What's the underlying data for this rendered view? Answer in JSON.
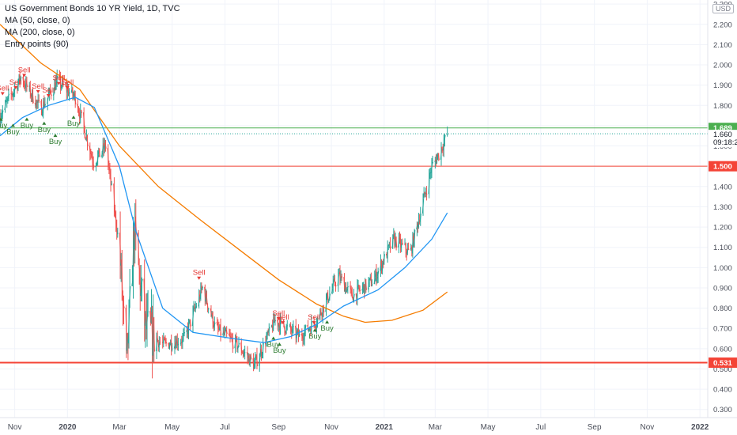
{
  "legend": {
    "title": "US Government Bonds 10 YR Yield, 1D, TVC",
    "ma50": "MA (50, close, 0)",
    "ma200": "MA (200, close, 0)",
    "entry": "Entry points (90)"
  },
  "currency_label": "USD",
  "colors": {
    "ma50": "#2196f3",
    "ma200": "#f57c00",
    "up": "#26a69a",
    "down": "#ef5350",
    "green_line": "#4caf50",
    "red_line": "#f44336",
    "buy": "#2e7d32",
    "sell": "#e53935"
  },
  "chart_data": {
    "type": "line",
    "x_ticks": [
      "Nov",
      "2020",
      "Mar",
      "May",
      "Jul",
      "Sep",
      "Nov",
      "2021",
      "Mar",
      "May",
      "Jul",
      "Sep",
      "Nov",
      "2022"
    ],
    "y_ticks": [
      "2.300",
      "2.200",
      "2.100",
      "2.000",
      "1.900",
      "1.800",
      "1.700",
      "1.600",
      "1.500",
      "1.400",
      "1.300",
      "1.200",
      "1.100",
      "1.000",
      "0.900",
      "0.800",
      "0.700",
      "0.600",
      "0.500",
      "0.400",
      "0.300"
    ],
    "ylim": [
      0.26,
      2.32
    ],
    "x_range": [
      "2019-10-15",
      "2022-01-10"
    ],
    "price_points": [
      [
        "2019-10-15",
        1.75
      ],
      [
        "2019-11-08",
        1.94
      ],
      [
        "2019-12-01",
        1.78
      ],
      [
        "2019-12-20",
        1.92
      ],
      [
        "2020-01-10",
        1.84
      ],
      [
        "2020-01-31",
        1.52
      ],
      [
        "2020-02-14",
        1.6
      ],
      [
        "2020-03-01",
        1.1
      ],
      [
        "2020-03-09",
        0.5
      ],
      [
        "2020-03-18",
        1.18
      ],
      [
        "2020-03-31",
        0.7
      ],
      [
        "2020-04-20",
        0.62
      ],
      [
        "2020-05-15",
        0.65
      ],
      [
        "2020-06-05",
        0.9
      ],
      [
        "2020-06-20",
        0.7
      ],
      [
        "2020-07-15",
        0.62
      ],
      [
        "2020-08-04",
        0.52
      ],
      [
        "2020-08-28",
        0.74
      ],
      [
        "2020-09-25",
        0.66
      ],
      [
        "2020-10-15",
        0.74
      ],
      [
        "2020-11-09",
        0.96
      ],
      [
        "2020-11-25",
        0.86
      ],
      [
        "2020-12-20",
        0.94
      ],
      [
        "2021-01-12",
        1.14
      ],
      [
        "2021-01-31",
        1.07
      ],
      [
        "2021-02-25",
        1.5
      ],
      [
        "2021-03-05",
        1.56
      ],
      [
        "2021-03-15",
        1.66
      ]
    ],
    "ma50_points": [
      [
        "2019-10-15",
        1.65
      ],
      [
        "2019-11-10",
        1.74
      ],
      [
        "2019-12-10",
        1.8
      ],
      [
        "2020-01-10",
        1.84
      ],
      [
        "2020-02-01",
        1.79
      ],
      [
        "2020-03-01",
        1.5
      ],
      [
        "2020-03-20",
        1.18
      ],
      [
        "2020-04-20",
        0.8
      ],
      [
        "2020-05-25",
        0.68
      ],
      [
        "2020-07-10",
        0.65
      ],
      [
        "2020-08-15",
        0.63
      ],
      [
        "2020-09-15",
        0.66
      ],
      [
        "2020-10-15",
        0.72
      ],
      [
        "2020-11-15",
        0.81
      ],
      [
        "2020-12-25",
        0.89
      ],
      [
        "2021-01-25",
        1.0
      ],
      [
        "2021-02-25",
        1.14
      ],
      [
        "2021-03-15",
        1.27
      ]
    ],
    "ma200_points": [
      [
        "2019-10-15",
        2.2
      ],
      [
        "2019-12-01",
        2.01
      ],
      [
        "2020-01-15",
        1.88
      ],
      [
        "2020-03-01",
        1.6
      ],
      [
        "2020-04-15",
        1.4
      ],
      [
        "2020-06-01",
        1.24
      ],
      [
        "2020-07-20",
        1.08
      ],
      [
        "2020-09-01",
        0.94
      ],
      [
        "2020-10-15",
        0.82
      ],
      [
        "2020-11-15",
        0.76
      ],
      [
        "2020-12-10",
        0.73
      ],
      [
        "2021-01-10",
        0.74
      ],
      [
        "2021-02-15",
        0.79
      ],
      [
        "2021-03-15",
        0.88
      ]
    ],
    "horizontal_levels": [
      {
        "value": 1.689,
        "label": "1.689",
        "style": "green"
      },
      {
        "value": 1.5,
        "label": "1.500",
        "style": "red"
      },
      {
        "value": 0.531,
        "label": "0.531",
        "style": "red-bold"
      }
    ],
    "current_price": {
      "value": 1.66,
      "label": "1.660",
      "countdown": "09:18:2"
    },
    "signals": [
      {
        "type": "sell",
        "date": "2019-10-18",
        "value": 1.85
      },
      {
        "type": "sell",
        "date": "2019-11-02",
        "value": 1.88
      },
      {
        "type": "sell",
        "date": "2019-11-12",
        "value": 1.94
      },
      {
        "type": "sell",
        "date": "2019-11-28",
        "value": 1.86
      },
      {
        "type": "sell",
        "date": "2019-12-10",
        "value": 1.84
      },
      {
        "type": "sell",
        "date": "2019-12-22",
        "value": 1.9
      },
      {
        "type": "sell",
        "date": "2020-01-01",
        "value": 1.88
      },
      {
        "type": "buy",
        "date": "2019-10-16",
        "value": 1.74
      },
      {
        "type": "buy",
        "date": "2019-10-30",
        "value": 1.71
      },
      {
        "type": "buy",
        "date": "2019-11-15",
        "value": 1.74
      },
      {
        "type": "buy",
        "date": "2019-12-05",
        "value": 1.72
      },
      {
        "type": "buy",
        "date": "2019-12-18",
        "value": 1.66
      },
      {
        "type": "buy",
        "date": "2020-01-08",
        "value": 1.75
      },
      {
        "type": "sell",
        "date": "2020-06-01",
        "value": 0.94
      },
      {
        "type": "sell",
        "date": "2020-09-01",
        "value": 0.74
      },
      {
        "type": "sell",
        "date": "2020-09-06",
        "value": 0.72
      },
      {
        "type": "sell",
        "date": "2020-10-12",
        "value": 0.72
      },
      {
        "type": "buy",
        "date": "2020-08-26",
        "value": 0.66
      },
      {
        "type": "buy",
        "date": "2020-09-02",
        "value": 0.63
      },
      {
        "type": "buy",
        "date": "2020-10-13",
        "value": 0.7
      },
      {
        "type": "buy",
        "date": "2020-10-27",
        "value": 0.74
      }
    ],
    "signal_labels": {
      "buy": "Buy",
      "sell": "Sell"
    }
  }
}
